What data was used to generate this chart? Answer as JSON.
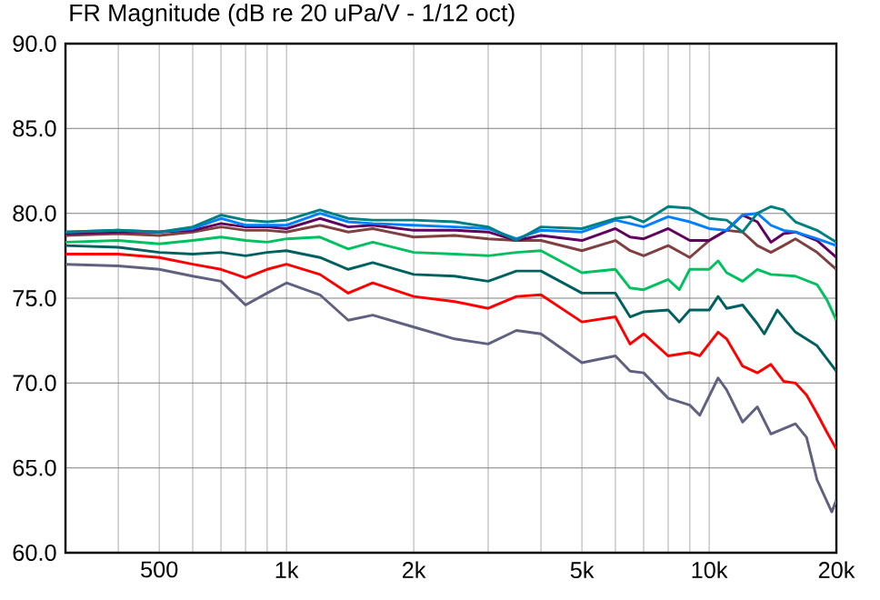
{
  "chart_data": {
    "type": "line",
    "title": "FR Magnitude (dB re 20 uPa/V - 1/12 oct)",
    "log": "x",
    "grid": true,
    "marker": "none",
    "line_style": "solid",
    "xlim": [
      300,
      20000
    ],
    "ylim": [
      60,
      90
    ],
    "xticks": [
      {
        "value": 400,
        "label": null
      },
      500,
      {
        "value": 600,
        "label": null
      },
      {
        "value": 700,
        "label": null
      },
      {
        "value": 800,
        "label": null
      },
      {
        "value": 900,
        "label": null
      },
      {
        "value": 1000,
        "label": "1k"
      },
      {
        "value": 2000,
        "label": "2k"
      },
      {
        "value": 3000,
        "label": null
      },
      {
        "value": 4000,
        "label": null
      },
      {
        "value": 5000,
        "label": "5k"
      },
      {
        "value": 6000,
        "label": null
      },
      {
        "value": 7000,
        "label": null
      },
      {
        "value": 8000,
        "label": null
      },
      {
        "value": 9000,
        "label": null
      },
      {
        "value": 10000,
        "label": "10k"
      },
      {
        "value": 20000,
        "label": "20k"
      }
    ],
    "yticks": [
      {
        "value": 60,
        "label": "60.0"
      },
      {
        "value": 65,
        "label": "65.0"
      },
      {
        "value": 70,
        "label": "70.0"
      },
      {
        "value": 75,
        "label": "75.0"
      },
      {
        "value": 80,
        "label": "80.0"
      },
      {
        "value": 85,
        "label": "85.0"
      },
      {
        "value": 90,
        "label": "90.0"
      }
    ],
    "series": [
      {
        "color": "#606080",
        "x": [
          300,
          400,
          500,
          600,
          700,
          800,
          900,
          1000,
          1200,
          1400,
          1600,
          2000,
          2500,
          3000,
          3500,
          4000,
          5000,
          6000,
          6500,
          7000,
          8000,
          9000,
          9500,
          10500,
          11000,
          12000,
          13000,
          14000,
          16000,
          17000,
          18000,
          19500,
          20000
        ],
        "values": [
          77.0,
          76.9,
          76.7,
          76.3,
          76.0,
          74.6,
          75.3,
          75.9,
          75.2,
          73.7,
          74.0,
          73.3,
          72.6,
          72.3,
          73.1,
          72.9,
          71.2,
          71.6,
          70.7,
          70.6,
          69.1,
          68.7,
          68.1,
          70.3,
          69.6,
          67.7,
          68.6,
          67.0,
          67.6,
          66.8,
          64.3,
          62.4,
          63.1
        ]
      },
      {
        "color": "#ff0000",
        "x": [
          300,
          400,
          500,
          600,
          700,
          800,
          900,
          1000,
          1200,
          1400,
          1600,
          2000,
          2500,
          3000,
          3500,
          4000,
          5000,
          6000,
          6500,
          7000,
          8000,
          9000,
          9500,
          10500,
          11000,
          12000,
          13000,
          14000,
          15000,
          16000,
          17000,
          18000,
          19000,
          20000
        ],
        "values": [
          77.6,
          77.6,
          77.4,
          77.0,
          76.7,
          76.2,
          76.7,
          77.0,
          76.4,
          75.3,
          75.9,
          75.1,
          74.8,
          74.4,
          75.1,
          75.2,
          73.6,
          73.9,
          72.3,
          72.9,
          71.6,
          71.8,
          71.6,
          73.0,
          72.6,
          71.0,
          70.6,
          71.1,
          70.1,
          70.0,
          69.3,
          68.2,
          67.1,
          66.1
        ]
      },
      {
        "color": "#006060",
        "x": [
          300,
          400,
          500,
          600,
          700,
          800,
          900,
          1000,
          1200,
          1400,
          1600,
          2000,
          2500,
          3000,
          3500,
          4000,
          5000,
          6000,
          6500,
          7000,
          8000,
          8500,
          9000,
          10000,
          10500,
          11000,
          12000,
          13000,
          13500,
          14500,
          16000,
          18000,
          20000
        ],
        "values": [
          78.1,
          78.0,
          77.7,
          77.6,
          77.7,
          77.5,
          77.7,
          77.8,
          77.4,
          76.7,
          77.1,
          76.4,
          76.3,
          76.0,
          76.6,
          76.6,
          75.3,
          75.3,
          73.9,
          74.2,
          74.3,
          73.6,
          74.3,
          74.3,
          75.1,
          74.4,
          74.6,
          73.5,
          72.9,
          74.3,
          73.0,
          72.2,
          70.7
        ]
      },
      {
        "color": "#00c060",
        "x": [
          300,
          400,
          500,
          600,
          700,
          800,
          900,
          1000,
          1200,
          1400,
          1600,
          2000,
          2500,
          3000,
          3500,
          4000,
          5000,
          6000,
          6500,
          7000,
          8000,
          8500,
          9000,
          10000,
          10500,
          11000,
          12000,
          13000,
          14000,
          16000,
          18000,
          19000,
          20000
        ],
        "values": [
          78.3,
          78.4,
          78.2,
          78.4,
          78.6,
          78.4,
          78.3,
          78.5,
          78.6,
          77.9,
          78.3,
          77.7,
          77.6,
          77.5,
          77.7,
          77.8,
          76.5,
          76.7,
          75.6,
          75.5,
          76.1,
          75.5,
          76.7,
          76.7,
          77.2,
          76.5,
          76.0,
          76.7,
          76.4,
          76.3,
          75.8,
          74.9,
          73.7
        ]
      },
      {
        "color": "#804040",
        "x": [
          300,
          400,
          500,
          600,
          700,
          800,
          900,
          1000,
          1200,
          1400,
          1600,
          2000,
          2500,
          3000,
          3500,
          4000,
          5000,
          6000,
          6500,
          7000,
          8000,
          9000,
          10000,
          11000,
          12000,
          13000,
          14000,
          15000,
          16000,
          18000,
          20000
        ],
        "values": [
          78.7,
          78.8,
          78.7,
          78.9,
          79.2,
          79.0,
          79.0,
          78.9,
          79.3,
          78.9,
          79.1,
          78.6,
          78.7,
          78.5,
          78.4,
          78.4,
          77.8,
          78.4,
          77.8,
          77.5,
          78.1,
          77.4,
          78.4,
          79.0,
          78.9,
          78.1,
          77.7,
          78.1,
          78.5,
          77.7,
          76.7
        ]
      },
      {
        "color": "#600060",
        "x": [
          300,
          400,
          500,
          600,
          700,
          800,
          900,
          1000,
          1200,
          1400,
          1600,
          2000,
          2500,
          3000,
          3500,
          4000,
          5000,
          6000,
          6500,
          7000,
          8000,
          9000,
          10000,
          11000,
          12000,
          13000,
          14000,
          15000,
          16000,
          18000,
          20000
        ],
        "values": [
          78.8,
          78.9,
          78.9,
          79.0,
          79.4,
          79.2,
          79.2,
          79.1,
          79.7,
          79.2,
          79.3,
          79.0,
          79.0,
          78.9,
          78.4,
          78.7,
          78.4,
          79.1,
          78.6,
          78.5,
          79.1,
          78.4,
          78.4,
          79.0,
          79.9,
          79.5,
          78.3,
          78.8,
          78.9,
          78.4,
          77.4
        ]
      },
      {
        "color": "#0080ff",
        "x": [
          300,
          400,
          500,
          600,
          700,
          800,
          900,
          1000,
          1200,
          1400,
          1600,
          2000,
          2500,
          3000,
          3500,
          4000,
          5000,
          6000,
          6500,
          7000,
          8000,
          9000,
          10000,
          11000,
          12000,
          13000,
          14000,
          15000,
          16000,
          18000,
          20000
        ],
        "values": [
          78.9,
          79.0,
          78.9,
          79.1,
          79.7,
          79.3,
          79.3,
          79.3,
          80.0,
          79.5,
          79.4,
          79.3,
          79.2,
          79.1,
          78.5,
          79.0,
          78.9,
          79.6,
          79.4,
          79.2,
          79.8,
          79.5,
          79.1,
          79.0,
          79.9,
          80.0,
          79.3,
          79.0,
          78.9,
          78.5,
          78.1
        ]
      },
      {
        "color": "#008080",
        "x": [
          300,
          400,
          500,
          600,
          700,
          800,
          900,
          1000,
          1200,
          1400,
          1600,
          2000,
          2500,
          3000,
          3500,
          4000,
          5000,
          6000,
          6500,
          7000,
          8000,
          9000,
          10000,
          11000,
          12000,
          13000,
          14000,
          15000,
          16000,
          18000,
          20000
        ],
        "values": [
          78.9,
          79.0,
          78.9,
          79.2,
          79.9,
          79.6,
          79.5,
          79.6,
          80.2,
          79.7,
          79.6,
          79.6,
          79.5,
          79.2,
          78.4,
          79.2,
          79.1,
          79.7,
          79.8,
          79.5,
          80.4,
          80.3,
          79.7,
          79.6,
          78.9,
          80.0,
          80.4,
          80.2,
          79.5,
          79.0,
          78.3
        ]
      }
    ]
  }
}
